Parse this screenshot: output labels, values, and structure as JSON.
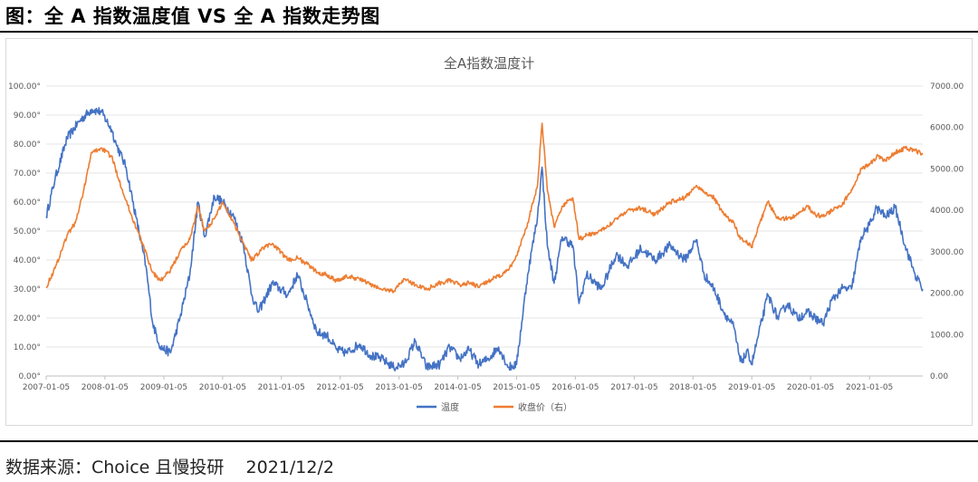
{
  "figure": {
    "title": "图：全 A 指数温度值 VS 全 A 指数走势图",
    "source": "数据来源：Choice 且慢投研    2021/12/2"
  },
  "chart_data": {
    "type": "line",
    "title": "全A指数温度计",
    "x_ticks": [
      "2007-01-05",
      "2008-01-05",
      "2009-01-05",
      "2010-01-05",
      "2011-01-05",
      "2012-01-05",
      "2013-01-05",
      "2014-01-05",
      "2015-01-05",
      "2016-01-05",
      "2017-01-05",
      "2018-01-05",
      "2019-01-05",
      "2020-01-05",
      "2021-01-05"
    ],
    "x_range": [
      "2007-01-05",
      "2021-12-02"
    ],
    "y_left": {
      "ylim": [
        0,
        100
      ],
      "ticks": [
        "0.00°",
        "10.00°",
        "20.00°",
        "30.00°",
        "40.00°",
        "50.00°",
        "60.00°",
        "70.00°",
        "80.00°",
        "90.00°",
        "100.00°"
      ]
    },
    "y_right": {
      "ylim": [
        0,
        7000
      ],
      "ticks": [
        "0.00",
        "1000.00",
        "2000.00",
        "3000.00",
        "4000.00",
        "5000.00",
        "6000.00",
        "7000.00"
      ]
    },
    "grid": true,
    "legend_position": "bottom",
    "series": [
      {
        "name": "温度",
        "axis": "left",
        "color": "#4472C4",
        "x": [
          "2007-01-05",
          "2007-03-01",
          "2007-05-15",
          "2007-08-01",
          "2007-10-15",
          "2007-12-15",
          "2008-02-15",
          "2008-03-15",
          "2008-05-15",
          "2008-07-15",
          "2008-09-15",
          "2008-10-28",
          "2008-12-15",
          "2009-02-15",
          "2009-04-15",
          "2009-06-15",
          "2009-08-05",
          "2009-09-15",
          "2009-11-15",
          "2010-01-05",
          "2010-03-15",
          "2010-05-15",
          "2010-07-05",
          "2010-08-15",
          "2010-11-10",
          "2011-02-15",
          "2011-04-15",
          "2011-06-15",
          "2011-08-15",
          "2011-10-15",
          "2011-12-15",
          "2012-02-15",
          "2012-05-05",
          "2012-07-15",
          "2012-09-15",
          "2012-12-03",
          "2013-02-05",
          "2013-04-15",
          "2013-06-25",
          "2013-09-15",
          "2013-11-15",
          "2014-01-15",
          "2014-03-15",
          "2014-05-15",
          "2014-07-15",
          "2014-09-15",
          "2014-11-15",
          "2015-01-05",
          "2015-03-15",
          "2015-05-15",
          "2015-06-12",
          "2015-07-15",
          "2015-08-26",
          "2015-10-15",
          "2015-12-20",
          "2016-01-28",
          "2016-03-15",
          "2016-06-15",
          "2016-09-15",
          "2016-11-25",
          "2017-02-15",
          "2017-05-15",
          "2017-08-15",
          "2017-11-15",
          "2018-01-25",
          "2018-03-15",
          "2018-05-15",
          "2018-07-15",
          "2018-09-15",
          "2018-10-25",
          "2018-12-15",
          "2019-01-04",
          "2019-02-15",
          "2019-04-15",
          "2019-06-15",
          "2019-08-15",
          "2019-10-15",
          "2019-12-15",
          "2020-02-03",
          "2020-03-23",
          "2020-05-15",
          "2020-07-15",
          "2020-09-15",
          "2020-11-15",
          "2021-01-05",
          "2021-02-18",
          "2021-04-15",
          "2021-06-15",
          "2021-08-15",
          "2021-10-15",
          "2021-12-02"
        ],
        "y": [
          55,
          68,
          82,
          88,
          92,
          91,
          85,
          80,
          72,
          55,
          38,
          18,
          10,
          8,
          20,
          35,
          60,
          48,
          62,
          60,
          55,
          45,
          28,
          22,
          32,
          28,
          35,
          25,
          15,
          14,
          9,
          8,
          11,
          7,
          6,
          3,
          4,
          12,
          3,
          4,
          10,
          6,
          9,
          4,
          6,
          10,
          3,
          4,
          35,
          55,
          72,
          45,
          32,
          48,
          45,
          25,
          35,
          30,
          42,
          38,
          44,
          40,
          45,
          40,
          47,
          35,
          30,
          22,
          17,
          5,
          8,
          4,
          14,
          28,
          20,
          25,
          20,
          22,
          20,
          18,
          26,
          30,
          30,
          48,
          52,
          58,
          55,
          58,
          45,
          35,
          30
        ]
      },
      {
        "name": "收盘价（右）",
        "axis": "right",
        "color": "#ED7D31",
        "x": [
          "2007-01-05",
          "2007-03-01",
          "2007-05-15",
          "2007-07-05",
          "2007-08-15",
          "2007-10-15",
          "2007-12-15",
          "2008-02-15",
          "2008-04-22",
          "2008-06-15",
          "2008-08-15",
          "2008-10-28",
          "2008-12-15",
          "2009-02-15",
          "2009-04-15",
          "2009-06-15",
          "2009-08-05",
          "2009-09-15",
          "2009-11-15",
          "2010-01-05",
          "2010-03-15",
          "2010-05-15",
          "2010-07-05",
          "2010-09-15",
          "2010-11-10",
          "2011-02-15",
          "2011-04-15",
          "2011-06-15",
          "2011-08-15",
          "2011-10-15",
          "2011-12-15",
          "2012-02-15",
          "2012-05-05",
          "2012-07-15",
          "2012-09-15",
          "2012-12-03",
          "2013-02-05",
          "2013-04-15",
          "2013-06-25",
          "2013-09-15",
          "2013-11-15",
          "2014-01-15",
          "2014-03-15",
          "2014-05-15",
          "2014-07-15",
          "2014-09-15",
          "2014-11-15",
          "2015-01-05",
          "2015-03-15",
          "2015-05-15",
          "2015-06-12",
          "2015-07-15",
          "2015-08-26",
          "2015-10-15",
          "2015-12-20",
          "2016-01-28",
          "2016-03-15",
          "2016-06-15",
          "2016-09-15",
          "2016-11-25",
          "2017-02-15",
          "2017-05-15",
          "2017-08-15",
          "2017-11-15",
          "2018-01-25",
          "2018-03-15",
          "2018-05-15",
          "2018-07-15",
          "2018-09-15",
          "2018-10-25",
          "2018-12-15",
          "2019-01-04",
          "2019-02-15",
          "2019-04-15",
          "2019-06-15",
          "2019-08-15",
          "2019-10-15",
          "2019-12-15",
          "2020-02-03",
          "2020-03-23",
          "2020-05-15",
          "2020-07-15",
          "2020-09-15",
          "2020-11-15",
          "2021-01-05",
          "2021-02-18",
          "2021-04-15",
          "2021-06-15",
          "2021-08-15",
          "2021-10-15",
          "2021-12-02"
        ],
        "y": [
          2150,
          2600,
          3400,
          3700,
          4300,
          5400,
          5500,
          5300,
          4500,
          3900,
          3300,
          2500,
          2300,
          2550,
          3000,
          3300,
          4100,
          3500,
          3800,
          4200,
          3700,
          3200,
          2800,
          3100,
          3200,
          2800,
          2850,
          2700,
          2500,
          2450,
          2300,
          2400,
          2350,
          2200,
          2100,
          2050,
          2350,
          2200,
          2100,
          2250,
          2300,
          2200,
          2250,
          2150,
          2300,
          2400,
          2550,
          2900,
          3700,
          4600,
          6100,
          4500,
          3600,
          4100,
          4300,
          3300,
          3400,
          3500,
          3800,
          4000,
          4050,
          3900,
          4200,
          4300,
          4600,
          4450,
          4300,
          3900,
          3700,
          3300,
          3200,
          3100,
          3600,
          4200,
          3800,
          3800,
          3900,
          4100,
          3900,
          3850,
          4000,
          4100,
          4500,
          5000,
          5100,
          5300,
          5200,
          5400,
          5500,
          5450,
          5350
        ]
      }
    ]
  }
}
